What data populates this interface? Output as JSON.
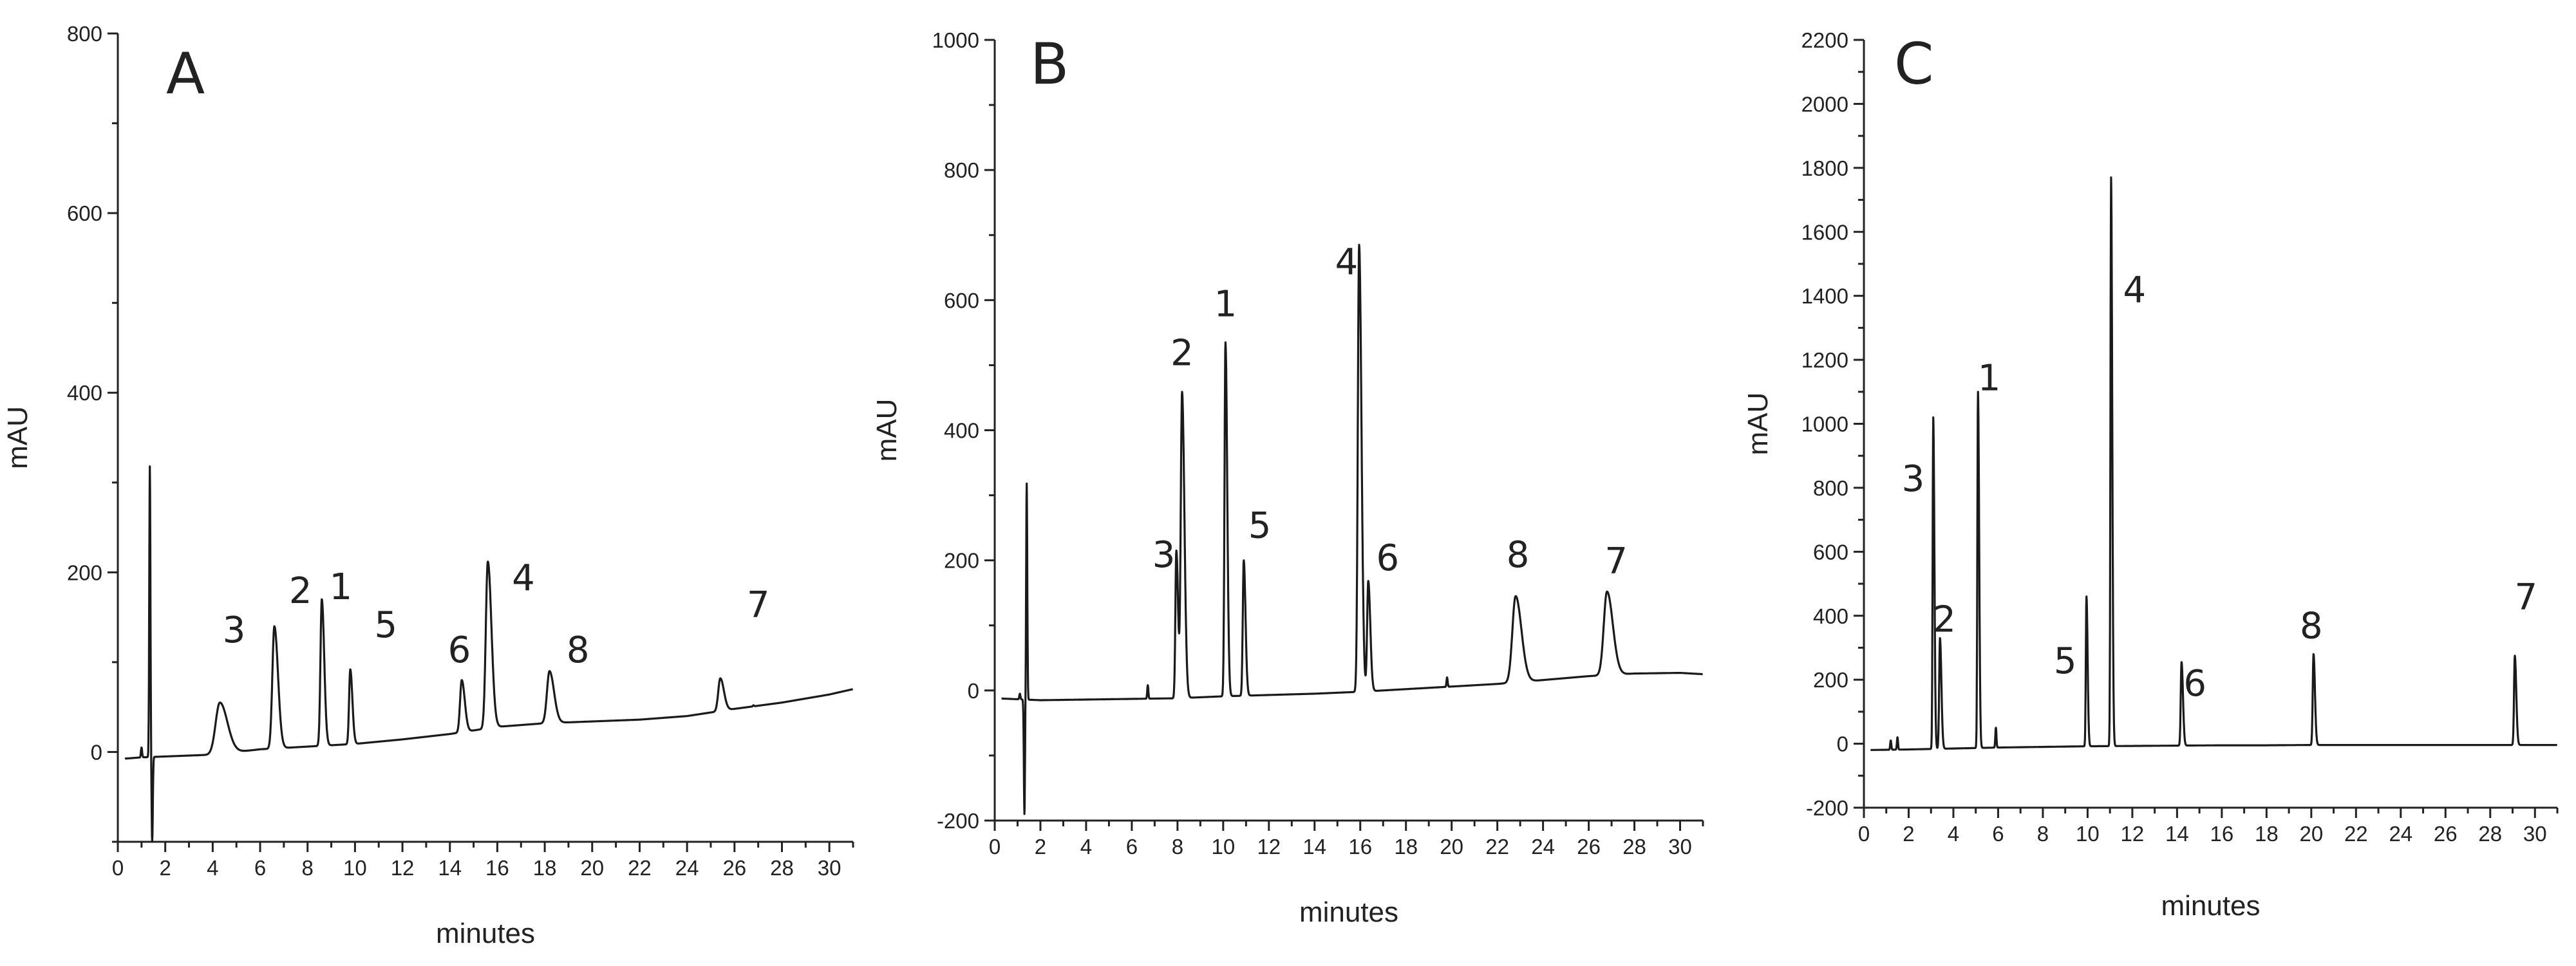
{
  "chart_data": [
    {
      "type": "line",
      "panel_label": "A",
      "xlabel": "minutes",
      "ylabel": "mAU",
      "xlim": [
        0,
        31
      ],
      "ylim": [
        -100,
        800
      ],
      "x_ticks": [
        "0",
        "2",
        "4",
        "6",
        "8",
        "10",
        "12",
        "14",
        "16",
        "18",
        "20",
        "22",
        "24",
        "26",
        "28",
        "30"
      ],
      "y_ticks": [
        "0",
        "200",
        "400",
        "600",
        "800"
      ],
      "y_tick_values": [
        0,
        200,
        400,
        600,
        800
      ],
      "grid": false,
      "peaks": [
        {
          "label": "3",
          "x": 4.3,
          "y": 55,
          "width": 0.25
        },
        {
          "label": "2",
          "x": 6.6,
          "y": 140,
          "width": 0.12
        },
        {
          "label": "1",
          "x": 8.6,
          "y": 170,
          "width": 0.08
        },
        {
          "label": "5",
          "x": 9.8,
          "y": 92,
          "width": 0.07
        },
        {
          "label": "6",
          "x": 14.5,
          "y": 80,
          "width": 0.1
        },
        {
          "label": "4",
          "x": 15.6,
          "y": 212,
          "width": 0.12
        },
        {
          "label": "8",
          "x": 18.2,
          "y": 90,
          "width": 0.15
        },
        {
          "label": "7",
          "x": 25.4,
          "y": 82,
          "width": 0.12
        }
      ],
      "peak_labels": [
        {
          "text": "3",
          "x": 4.9,
          "y": 122
        },
        {
          "text": "2",
          "x": 7.7,
          "y": 166
        },
        {
          "text": "1",
          "x": 9.4,
          "y": 170
        },
        {
          "text": "5",
          "x": 11.3,
          "y": 128
        },
        {
          "text": "6",
          "x": 14.4,
          "y": 100
        },
        {
          "text": "4",
          "x": 17.1,
          "y": 180
        },
        {
          "text": "8",
          "x": 19.4,
          "y": 100
        },
        {
          "text": "7",
          "x": 27.0,
          "y": 150
        }
      ],
      "baseline": [
        [
          0,
          -8
        ],
        [
          1,
          -6
        ],
        [
          2,
          -5
        ],
        [
          4,
          -3
        ],
        [
          6,
          3
        ],
        [
          8,
          6
        ],
        [
          10,
          9
        ],
        [
          12,
          14
        ],
        [
          14,
          20
        ],
        [
          16,
          28
        ],
        [
          18,
          32
        ],
        [
          20,
          34
        ],
        [
          22,
          36
        ],
        [
          24,
          40
        ],
        [
          26,
          48
        ],
        [
          28,
          55
        ],
        [
          30,
          64
        ],
        [
          31,
          70
        ]
      ],
      "artifacts": [
        {
          "x": 1.0,
          "y": 5
        },
        {
          "x": 1.35,
          "y": 318
        },
        {
          "x": 1.45,
          "y": -100
        },
        {
          "x": 26.8,
          "y": 52
        }
      ]
    },
    {
      "type": "line",
      "panel_label": "B",
      "xlabel": "minutes",
      "ylabel": "mAU",
      "xlim": [
        0,
        31
      ],
      "ylim": [
        -200,
        1000
      ],
      "x_ticks": [
        "0",
        "2",
        "4",
        "6",
        "8",
        "10",
        "12",
        "14",
        "16",
        "18",
        "20",
        "22",
        "24",
        "26",
        "28",
        "30"
      ],
      "y_ticks": [
        "-200",
        "0",
        "200",
        "400",
        "600",
        "800",
        "1000"
      ],
      "y_tick_values": [
        -200,
        0,
        200,
        400,
        600,
        800,
        1000
      ],
      "grid": false,
      "peaks": [
        {
          "label": "3",
          "x": 7.95,
          "y": 215,
          "width": 0.06
        },
        {
          "label": "2",
          "x": 8.2,
          "y": 458,
          "width": 0.08
        },
        {
          "label": "1",
          "x": 10.1,
          "y": 535,
          "width": 0.06
        },
        {
          "label": "5",
          "x": 10.9,
          "y": 200,
          "width": 0.06
        },
        {
          "label": "4",
          "x": 15.95,
          "y": 685,
          "width": 0.08
        },
        {
          "label": "6",
          "x": 16.35,
          "y": 168,
          "width": 0.07
        },
        {
          "label": "8",
          "x": 22.8,
          "y": 145,
          "width": 0.2
        },
        {
          "label": "7",
          "x": 26.8,
          "y": 152,
          "width": 0.2
        }
      ],
      "peak_labels": [
        {
          "text": "3",
          "x": 7.4,
          "y": 190
        },
        {
          "text": "2",
          "x": 8.2,
          "y": 500
        },
        {
          "text": "1",
          "x": 10.1,
          "y": 575
        },
        {
          "text": "5",
          "x": 11.6,
          "y": 235
        },
        {
          "text": "4",
          "x": 15.4,
          "y": 640
        },
        {
          "text": "6",
          "x": 17.2,
          "y": 185
        },
        {
          "text": "8",
          "x": 22.9,
          "y": 190
        },
        {
          "text": "7",
          "x": 27.2,
          "y": 180
        }
      ],
      "baseline": [
        [
          0,
          -12
        ],
        [
          2,
          -15
        ],
        [
          4,
          -14
        ],
        [
          6,
          -13
        ],
        [
          8,
          -12
        ],
        [
          10,
          -9
        ],
        [
          12,
          -7
        ],
        [
          14,
          -5
        ],
        [
          16,
          -2
        ],
        [
          18,
          2
        ],
        [
          20,
          6
        ],
        [
          22,
          10
        ],
        [
          24,
          16
        ],
        [
          26,
          22
        ],
        [
          28,
          26
        ],
        [
          30,
          27
        ],
        [
          31,
          25
        ]
      ],
      "artifacts": [
        {
          "x": 1.1,
          "y": -5
        },
        {
          "x": 1.3,
          "y": -190
        },
        {
          "x": 1.4,
          "y": 318
        },
        {
          "x": 6.7,
          "y": 8
        },
        {
          "x": 19.8,
          "y": 20
        }
      ]
    },
    {
      "type": "line",
      "panel_label": "C",
      "xlabel": "minutes",
      "ylabel": "mAU",
      "xlim": [
        0,
        31
      ],
      "ylim": [
        -200,
        2200
      ],
      "x_ticks": [
        "0",
        "2",
        "4",
        "6",
        "8",
        "10",
        "12",
        "14",
        "16",
        "18",
        "20",
        "22",
        "24",
        "26",
        "28",
        "30"
      ],
      "y_ticks": [
        "-200",
        "0",
        "200",
        "400",
        "600",
        "800",
        "1000",
        "1200",
        "1400",
        "1600",
        "1800",
        "2000",
        "2200"
      ],
      "y_tick_values": [
        -200,
        0,
        200,
        400,
        600,
        800,
        1000,
        1200,
        1400,
        1600,
        1800,
        2000,
        2200
      ],
      "grid": false,
      "peaks": [
        {
          "label": "3",
          "x": 3.1,
          "y": 1020,
          "width": 0.04
        },
        {
          "label": "2",
          "x": 3.4,
          "y": 330,
          "width": 0.05
        },
        {
          "label": "1",
          "x": 5.1,
          "y": 1100,
          "width": 0.04
        },
        {
          "label": "5",
          "x": 9.95,
          "y": 460,
          "width": 0.04
        },
        {
          "label": "4",
          "x": 11.05,
          "y": 1770,
          "width": 0.04
        },
        {
          "label": "6",
          "x": 14.2,
          "y": 255,
          "width": 0.05
        },
        {
          "label": "8",
          "x": 20.1,
          "y": 280,
          "width": 0.05
        },
        {
          "label": "7",
          "x": 29.1,
          "y": 275,
          "width": 0.05
        }
      ],
      "peak_labels": [
        {
          "text": "3",
          "x": 2.2,
          "y": 790
        },
        {
          "text": "2",
          "x": 3.6,
          "y": 350
        },
        {
          "text": "1",
          "x": 5.6,
          "y": 1105
        },
        {
          "text": "5",
          "x": 9.0,
          "y": 220
        },
        {
          "text": "4",
          "x": 12.1,
          "y": 1380
        },
        {
          "text": "6",
          "x": 14.8,
          "y": 150
        },
        {
          "text": "8",
          "x": 20.0,
          "y": 330
        },
        {
          "text": "7",
          "x": 29.6,
          "y": 420
        }
      ],
      "baseline": [
        [
          0,
          -20
        ],
        [
          2,
          -18
        ],
        [
          4,
          -15
        ],
        [
          6,
          -12
        ],
        [
          8,
          -10
        ],
        [
          10,
          -8
        ],
        [
          12,
          -7
        ],
        [
          14,
          -6
        ],
        [
          16,
          -5
        ],
        [
          18,
          -5
        ],
        [
          20,
          -4
        ],
        [
          22,
          -4
        ],
        [
          24,
          -4
        ],
        [
          26,
          -4
        ],
        [
          28,
          -4
        ],
        [
          30,
          -4
        ],
        [
          31,
          -4
        ]
      ],
      "artifacts": [
        {
          "x": 1.2,
          "y": 10
        },
        {
          "x": 1.5,
          "y": 20
        },
        {
          "x": 5.9,
          "y": 50
        }
      ]
    }
  ]
}
